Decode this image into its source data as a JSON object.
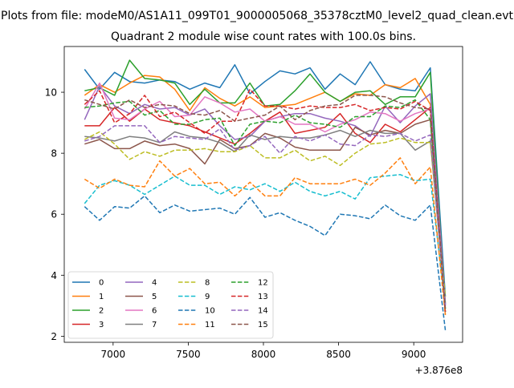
{
  "chart_data": {
    "type": "line",
    "suptitle": "Plots from file: modeM0/AS1A11_099T01_9000005068_35378cztM0_level2_quad_clean.evt",
    "title": "Quadrant 2 module wise count rates with 100.0s bins.",
    "xlabel": "",
    "ylabel": "",
    "x_offset_label": "+3.876e8",
    "xlim": [
      6675,
      9325
    ],
    "ylim": [
      1.8,
      11.5
    ],
    "xticks": [
      7000,
      7500,
      8000,
      8500,
      9000
    ],
    "xtick_labels": [
      "7000",
      "7500",
      "8000",
      "8500",
      "9000"
    ],
    "yticks": [
      2,
      4,
      6,
      8,
      10
    ],
    "ytick_labels": [
      "2",
      "4",
      "6",
      "8",
      "10"
    ],
    "grid": false,
    "legend": {
      "placement": "lower-left",
      "columns": 4
    },
    "x": [
      6810,
      6910,
      7010,
      7110,
      7210,
      7310,
      7410,
      7510,
      7610,
      7710,
      7810,
      7910,
      8010,
      8110,
      8210,
      8310,
      8410,
      8510,
      8610,
      8710,
      8810,
      8910,
      9010,
      9110,
      9210
    ],
    "series": [
      {
        "name": "0",
        "color": "#1f77b4",
        "dash": "solid",
        "values": [
          10.75,
          10.1,
          10.65,
          10.35,
          10.3,
          10.4,
          10.35,
          10.1,
          10.3,
          10.15,
          10.9,
          9.95,
          10.35,
          10.7,
          10.6,
          10.8,
          10.1,
          10.6,
          10.25,
          11.0,
          10.25,
          10.1,
          10.05,
          10.8,
          3.3
        ]
      },
      {
        "name": "1",
        "color": "#ff7f0e",
        "dash": "solid",
        "values": [
          9.9,
          10.25,
          10.0,
          10.3,
          10.55,
          10.5,
          10.1,
          9.4,
          10.15,
          9.8,
          9.55,
          9.85,
          9.5,
          9.55,
          9.6,
          9.8,
          10.0,
          9.7,
          9.95,
          9.9,
          10.25,
          10.15,
          10.45,
          9.6,
          2.7
        ]
      },
      {
        "name": "2",
        "color": "#2ca02c",
        "dash": "solid",
        "values": [
          10.05,
          10.15,
          9.9,
          11.05,
          10.45,
          10.4,
          10.3,
          9.6,
          10.1,
          9.65,
          9.65,
          10.3,
          9.55,
          9.6,
          10.05,
          10.6,
          10.0,
          9.7,
          10.0,
          10.05,
          9.6,
          9.85,
          9.85,
          10.65,
          2.9
        ]
      },
      {
        "name": "3",
        "color": "#d62728",
        "dash": "solid",
        "values": [
          8.9,
          8.9,
          9.5,
          9.05,
          9.45,
          9.1,
          9.0,
          8.9,
          8.7,
          8.5,
          8.3,
          8.65,
          9.05,
          9.35,
          8.65,
          8.75,
          8.85,
          9.3,
          8.65,
          8.35,
          8.95,
          8.7,
          9.1,
          9.5,
          2.8
        ]
      },
      {
        "name": "4",
        "color": "#9467bd",
        "dash": "solid",
        "values": [
          9.1,
          10.2,
          9.55,
          9.3,
          9.6,
          9.45,
          9.5,
          9.25,
          9.45,
          8.9,
          8.45,
          8.55,
          9.05,
          9.2,
          9.3,
          9.3,
          9.15,
          9.05,
          8.9,
          8.55,
          9.55,
          9.0,
          9.55,
          9.95,
          3.05
        ]
      },
      {
        "name": "5",
        "color": "#8c564b",
        "dash": "solid",
        "values": [
          8.3,
          8.45,
          8.15,
          8.15,
          8.4,
          8.25,
          8.3,
          8.15,
          7.65,
          8.45,
          8.15,
          8.25,
          8.65,
          8.5,
          8.2,
          8.1,
          8.1,
          8.1,
          8.85,
          8.6,
          8.75,
          8.65,
          8.95,
          9.1,
          3.1
        ]
      },
      {
        "name": "6",
        "color": "#e377c2",
        "dash": "solid",
        "values": [
          9.45,
          10.3,
          9.15,
          9.1,
          9.45,
          9.7,
          9.2,
          9.25,
          9.85,
          9.65,
          9.35,
          9.45,
          9.05,
          9.2,
          8.95,
          8.95,
          8.7,
          8.95,
          9.1,
          9.35,
          9.3,
          9.05,
          9.3,
          9.45,
          3.0
        ]
      },
      {
        "name": "7",
        "color": "#7f7f7f",
        "dash": "solid",
        "values": [
          8.55,
          8.5,
          8.4,
          8.55,
          8.5,
          8.35,
          8.7,
          8.55,
          8.5,
          8.35,
          8.05,
          8.6,
          8.45,
          8.55,
          8.5,
          8.5,
          8.6,
          8.75,
          8.55,
          8.75,
          8.65,
          8.65,
          8.1,
          8.4,
          3.05
        ]
      },
      {
        "name": "8",
        "color": "#bcbd22",
        "dash": "dashed",
        "values": [
          8.45,
          8.7,
          8.3,
          7.8,
          8.05,
          7.9,
          8.1,
          8.1,
          8.15,
          8.05,
          8.05,
          8.25,
          7.85,
          7.85,
          8.1,
          7.75,
          7.9,
          7.6,
          8.0,
          8.3,
          8.35,
          8.5,
          8.35,
          8.35,
          3.3
        ]
      },
      {
        "name": "9",
        "color": "#17becf",
        "dash": "dashed",
        "values": [
          6.35,
          6.95,
          7.1,
          6.95,
          6.65,
          6.95,
          7.25,
          6.95,
          6.95,
          6.65,
          6.9,
          6.8,
          7.0,
          6.75,
          7.05,
          6.75,
          6.6,
          6.75,
          6.5,
          7.2,
          7.25,
          7.3,
          7.1,
          7.15,
          3.05
        ]
      },
      {
        "name": "10",
        "color": "#1f77b4",
        "dash": "dashed",
        "values": [
          6.25,
          5.8,
          6.25,
          6.2,
          6.6,
          6.05,
          6.3,
          6.1,
          6.15,
          6.2,
          6.0,
          6.55,
          5.9,
          6.05,
          5.8,
          5.6,
          5.3,
          6.0,
          5.95,
          5.85,
          6.3,
          5.95,
          5.8,
          6.3,
          2.2
        ]
      },
      {
        "name": "11",
        "color": "#ff7f0e",
        "dash": "dashed",
        "values": [
          7.15,
          6.85,
          7.15,
          6.95,
          6.9,
          7.75,
          7.25,
          7.5,
          7.0,
          7.05,
          6.6,
          7.05,
          6.6,
          6.6,
          7.2,
          7.0,
          7.0,
          7.0,
          7.15,
          6.95,
          7.35,
          7.85,
          7.0,
          7.55,
          2.7
        ]
      },
      {
        "name": "12",
        "color": "#2ca02c",
        "dash": "dashed",
        "values": [
          9.5,
          9.55,
          9.65,
          9.7,
          9.25,
          9.4,
          8.95,
          8.95,
          9.1,
          9.15,
          8.25,
          8.95,
          9.05,
          9.0,
          9.25,
          9.0,
          8.95,
          8.85,
          9.2,
          9.2,
          9.55,
          9.5,
          9.75,
          9.1,
          2.9
        ]
      },
      {
        "name": "13",
        "color": "#d62728",
        "dash": "dashed",
        "values": [
          9.6,
          10.05,
          9.0,
          9.3,
          9.9,
          9.2,
          9.35,
          9.0,
          8.65,
          9.05,
          9.05,
          10.1,
          9.55,
          9.55,
          9.45,
          9.55,
          9.5,
          9.5,
          9.6,
          9.4,
          9.5,
          9.45,
          9.7,
          9.4,
          2.8
        ]
      },
      {
        "name": "14",
        "color": "#9467bd",
        "dash": "dashed",
        "values": [
          8.4,
          8.55,
          8.9,
          8.9,
          8.9,
          8.35,
          8.55,
          8.5,
          8.45,
          8.8,
          8.1,
          8.25,
          8.55,
          8.0,
          8.55,
          8.4,
          8.6,
          8.3,
          8.25,
          8.6,
          8.55,
          8.65,
          8.4,
          8.6,
          3.0
        ]
      },
      {
        "name": "15",
        "color": "#8c564b",
        "dash": "dashed",
        "values": [
          9.75,
          9.6,
          9.45,
          9.75,
          9.5,
          9.6,
          9.55,
          9.3,
          9.25,
          9.4,
          9.05,
          9.15,
          9.25,
          9.55,
          9.1,
          9.4,
          9.55,
          9.6,
          9.9,
          9.9,
          9.85,
          9.65,
          9.5,
          9.45,
          2.8
        ]
      }
    ]
  }
}
